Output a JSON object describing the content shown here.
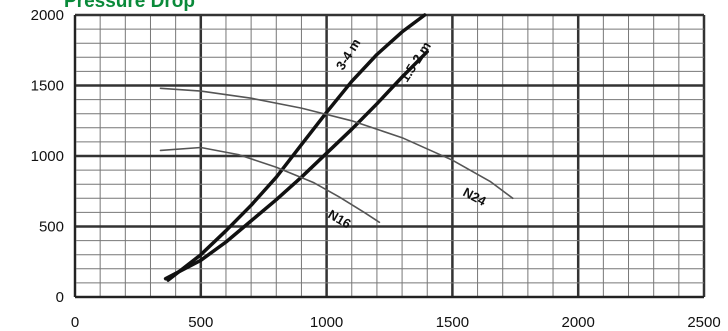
{
  "chart_data": {
    "type": "line",
    "title": "Pressure Drop",
    "xlabel": "",
    "ylabel": "",
    "xlim": [
      0,
      2500
    ],
    "ylim": [
      0,
      2000
    ],
    "x_ticks": [
      "0",
      "500",
      "1000",
      "1500",
      "2000",
      "2500"
    ],
    "y_ticks": [
      "0",
      "500",
      "1000",
      "1500",
      "2000"
    ],
    "grid": true,
    "series": [
      {
        "name": "3-4 m",
        "x": [
          370,
          500,
          600,
          700,
          800,
          900,
          1000,
          1100,
          1200,
          1300,
          1390
        ],
        "y": [
          120,
          300,
          470,
          650,
          850,
          1080,
          1310,
          1530,
          1720,
          1880,
          2000
        ],
        "color": "#111111"
      },
      {
        "name": "1.5-2 m",
        "x": [
          360,
          500,
          600,
          700,
          800,
          900,
          1000,
          1100,
          1200,
          1300,
          1400
        ],
        "y": [
          130,
          260,
          390,
          540,
          690,
          850,
          1020,
          1190,
          1370,
          1560,
          1740
        ],
        "color": "#111111"
      },
      {
        "name": "N16",
        "x": [
          340,
          500,
          650,
          800,
          950,
          1050,
          1150,
          1210
        ],
        "y": [
          1040,
          1060,
          1010,
          920,
          810,
          710,
          600,
          530
        ],
        "color": "#555555"
      },
      {
        "name": "N24",
        "x": [
          340,
          500,
          700,
          900,
          1100,
          1300,
          1500,
          1650,
          1740
        ],
        "y": [
          1480,
          1460,
          1410,
          1340,
          1250,
          1130,
          970,
          820,
          700
        ],
        "color": "#555555"
      }
    ],
    "annotations": [
      {
        "text": "3-4 m",
        "series": "3-4 m"
      },
      {
        "text": "1.5-2 m",
        "series": "1.5-2 m"
      },
      {
        "text": "N16",
        "series": "N16"
      },
      {
        "text": "N24",
        "series": "N24"
      }
    ]
  }
}
